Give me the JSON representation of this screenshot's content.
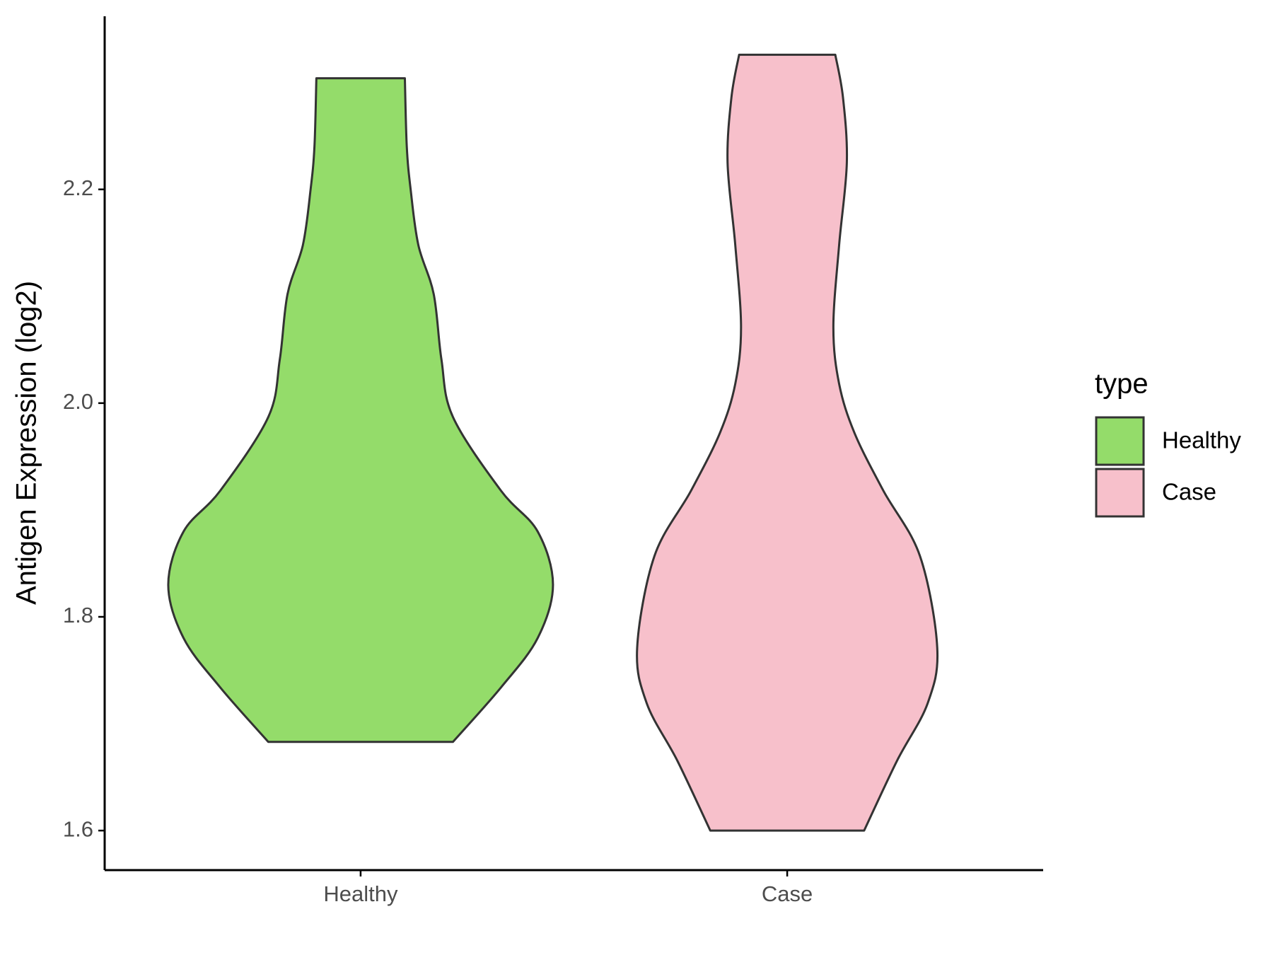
{
  "chart_data": {
    "type": "violin",
    "y_label": "Antigen Expression (log2)",
    "categories": [
      "Healthy",
      "Case"
    ],
    "legend_title": "type",
    "legend_position": "right",
    "ylim": [
      1.563,
      2.362
    ],
    "yticks": [
      1.6,
      1.8,
      {
        "value": 2.0,
        "label": "2.0"
      },
      2.2
    ],
    "series": [
      {
        "name": "Healthy",
        "color": "#94dc6a",
        "y": [
          2.304,
          2.24,
          2.2,
          2.148,
          2.102,
          2.041,
          1.987,
          1.918,
          1.88,
          1.83,
          1.78,
          1.734,
          1.683
        ],
        "width": [
          0.23,
          0.24,
          0.26,
          0.3,
          0.38,
          0.42,
          0.48,
          0.73,
          0.92,
          1.0,
          0.92,
          0.73,
          0.48
        ]
      },
      {
        "name": "Case",
        "color": "#f7c0cb",
        "y": [
          2.326,
          2.286,
          2.225,
          2.148,
          2.071,
          2.018,
          1.972,
          1.918,
          1.857,
          1.771,
          1.719,
          1.665,
          1.6
        ],
        "width": [
          0.25,
          0.29,
          0.31,
          0.27,
          0.24,
          0.27,
          0.35,
          0.5,
          0.69,
          0.78,
          0.73,
          0.57,
          0.4
        ]
      }
    ]
  }
}
